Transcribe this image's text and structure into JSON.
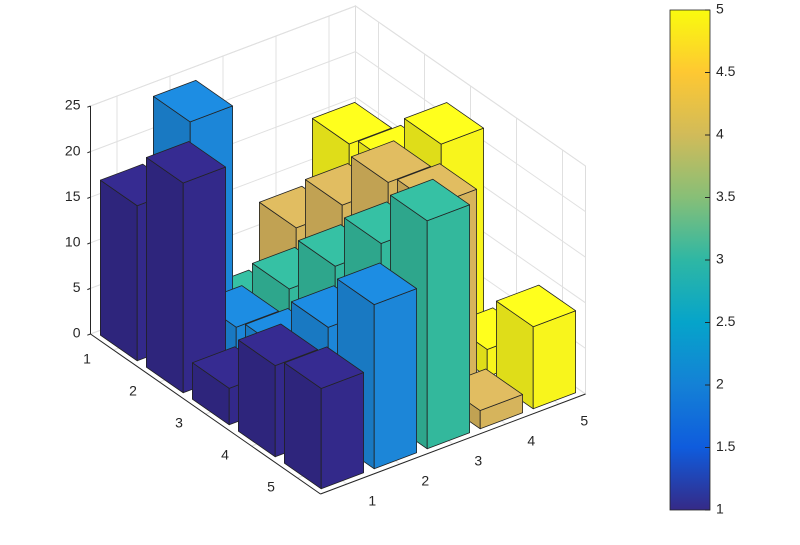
{
  "chart_data": {
    "type": "bar3",
    "xticks": [
      1,
      2,
      3,
      4,
      5
    ],
    "yticks": [
      1,
      2,
      3,
      4,
      5
    ],
    "zlim": [
      0,
      25
    ],
    "zticks": [
      0,
      5,
      10,
      15,
      20,
      25
    ],
    "grid": true,
    "series": [
      {
        "color": "#33298a",
        "values": [
          17,
          23,
          4,
          10,
          11
        ]
      },
      {
        "color": "#1c86d8",
        "values": [
          24,
          5,
          6,
          12,
          18
        ]
      },
      {
        "color": "#33b89c",
        "values": [
          1,
          7,
          13,
          19,
          25
        ]
      },
      {
        "color": "#d6b45c",
        "values": [
          8,
          14,
          20,
          21,
          2
        ]
      },
      {
        "color": "#f8f51c",
        "values": [
          15,
          16,
          22,
          3,
          9
        ]
      }
    ],
    "colorbar": {
      "lim": [
        1,
        5
      ],
      "ticks": [
        1,
        1.5,
        2,
        2.5,
        3,
        3.5,
        4,
        4.5,
        5
      ],
      "colormap": [
        "#352a87",
        "#0f5cdd",
        "#1481d6",
        "#06a4ca",
        "#2eb7a4",
        "#87bf77",
        "#d1bb59",
        "#fec832",
        "#f9fb0e"
      ]
    }
  }
}
